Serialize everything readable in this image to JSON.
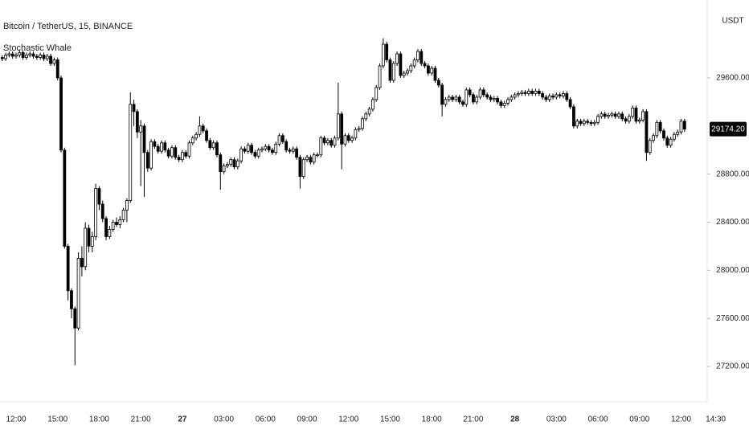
{
  "chart_data": {
    "type": "candlestick",
    "title": "Bitcoin / TetherUS, 15, BINANCE",
    "subtitle": "Stochastic Whale",
    "y_axis_label": "USDT",
    "last_price_label": "29174.20",
    "up_color": "#ffffff",
    "down_color": "#000000",
    "border_color": "#000000",
    "grid": false,
    "ylim": [
      26973,
      30248
    ],
    "yticks": [
      {
        "value": 27200,
        "label": "27200.00"
      },
      {
        "value": 27600,
        "label": "27600.00"
      },
      {
        "value": 28000,
        "label": "28000.00"
      },
      {
        "value": 28400,
        "label": "28400.00"
      },
      {
        "value": 28800,
        "label": "28800.00"
      },
      {
        "value": 29600,
        "label": "29600.00"
      }
    ],
    "categories": [
      null,
      null,
      null,
      null,
      "12:00",
      null,
      null,
      null,
      null,
      null,
      null,
      null,
      null,
      null,
      null,
      null,
      "15:00",
      null,
      null,
      null,
      null,
      null,
      null,
      null,
      null,
      null,
      null,
      null,
      "18:00",
      null,
      null,
      null,
      null,
      null,
      null,
      null,
      null,
      null,
      null,
      null,
      "21:00",
      null,
      null,
      null,
      null,
      null,
      null,
      null,
      null,
      null,
      null,
      null,
      "27",
      null,
      null,
      null,
      null,
      null,
      null,
      null,
      null,
      null,
      null,
      null,
      "03:00",
      null,
      null,
      null,
      null,
      null,
      null,
      null,
      null,
      null,
      null,
      null,
      "06:00",
      null,
      null,
      null,
      null,
      null,
      null,
      null,
      null,
      null,
      null,
      null,
      "09:00",
      null,
      null,
      null,
      null,
      null,
      null,
      null,
      null,
      null,
      null,
      null,
      "12:00",
      null,
      null,
      null,
      null,
      null,
      null,
      null,
      null,
      null,
      null,
      null,
      "15:00",
      null,
      null,
      null,
      null,
      null,
      null,
      null,
      null,
      null,
      null,
      null,
      "18:00",
      null,
      null,
      null,
      null,
      null,
      null,
      null,
      null,
      null,
      null,
      null,
      "21:00",
      null,
      null,
      null,
      null,
      null,
      null,
      null,
      null,
      null,
      null,
      null,
      "28",
      null,
      null,
      null,
      null,
      null,
      null,
      null,
      null,
      null,
      null,
      null,
      "03:00",
      null,
      null,
      null,
      null,
      null,
      null,
      null,
      null,
      null,
      null,
      null,
      "06:00",
      null,
      null,
      null,
      null,
      null,
      null,
      null,
      null,
      null,
      null,
      null,
      "09:00",
      null,
      null,
      null,
      null,
      null,
      null,
      null,
      null,
      null,
      null,
      null,
      "12:00",
      null,
      null,
      null,
      null,
      null,
      null,
      null,
      null,
      null,
      "14:30"
    ],
    "open": [
      29770,
      29760,
      29790,
      29800,
      29780,
      29790,
      29810,
      29770,
      29790,
      29800,
      29780,
      29770,
      29790,
      29760,
      29780,
      29720,
      29750,
      29600,
      29000,
      28200,
      27830,
      27680,
      27520,
      28100,
      28030,
      28350,
      28200,
      28280,
      28680,
      28550,
      28430,
      28280,
      28340,
      28400,
      28380,
      28420,
      28500,
      28580,
      29380,
      29320,
      29150,
      29200,
      28980,
      28850,
      29070,
      29030,
      28990,
      29060,
      29000,
      28950,
      29020,
      28940,
      28920,
      28980,
      28950,
      29060,
      29100,
      29130,
      29200,
      29160,
      29080,
      29020,
      29060,
      28960,
      28820,
      28870,
      28880,
      28920,
      28860,
      28910,
      29010,
      28990,
      29040,
      28980,
      28950,
      29000,
      29010,
      29030,
      29000,
      28980,
      29050,
      29120,
      29070,
      29000,
      28990,
      29010,
      28940,
      28780,
      28920,
      28940,
      28900,
      28960,
      28960,
      29100,
      29060,
      29080,
      29040,
      29100,
      29300,
      29050,
      29120,
      29080,
      29100,
      29170,
      29180,
      29260,
      29300,
      29340,
      29420,
      29520,
      29700,
      29880,
      29750,
      29580,
      29720,
      29800,
      29620,
      29640,
      29660,
      29700,
      29750,
      29820,
      29720,
      29700,
      29640,
      29680,
      29580,
      29540,
      29380,
      29420,
      29440,
      29420,
      29440,
      29400,
      29380,
      29500,
      29460,
      29400,
      29440,
      29500,
      29460,
      29440,
      29420,
      29430,
      29400,
      29370,
      29390,
      29420,
      29440,
      29460,
      29470,
      29480,
      29470,
      29490,
      29470,
      29490,
      29470,
      29440,
      29420,
      29450,
      29440,
      29460,
      29450,
      29470,
      29420,
      29360,
      29200,
      29240,
      29220,
      29240,
      29230,
      29220,
      29230,
      29280,
      29300,
      29280,
      29290,
      29300,
      29280,
      29300,
      29260,
      29240,
      29280,
      29350,
      29240,
      29250,
      29320,
      28980,
      29080,
      29120,
      29230,
      29160,
      29100,
      29040,
      29090,
      29130,
      29150,
      29240,
      null,
      null,
      null,
      null,
      null,
      null,
      null,
      null,
      null
    ],
    "high": [
      29790,
      29810,
      29820,
      29820,
      29810,
      29830,
      29830,
      29810,
      29820,
      29820,
      29800,
      29810,
      29810,
      29800,
      29800,
      29770,
      29770,
      29620,
      29020,
      28220,
      27850,
      27700,
      28150,
      28200,
      28400,
      28380,
      28320,
      28720,
      28700,
      28580,
      28450,
      28370,
      28420,
      28440,
      28450,
      28520,
      28600,
      29480,
      29420,
      29340,
      29250,
      29220,
      29000,
      29090,
      29090,
      29050,
      29080,
      29080,
      29020,
      29040,
      29040,
      28960,
      29000,
      29000,
      29080,
      29120,
      29150,
      29280,
      29220,
      29180,
      29100,
      29080,
      29080,
      28980,
      28890,
      28900,
      28940,
      28940,
      28930,
      29030,
      29030,
      29060,
      29060,
      29000,
      29020,
      29030,
      29050,
      29050,
      29020,
      29070,
      29140,
      29140,
      29090,
      29020,
      29030,
      29030,
      28960,
      28940,
      28960,
      28960,
      28980,
      28980,
      29120,
      29120,
      29100,
      29100,
      29120,
      29560,
      29320,
      29140,
      29140,
      29120,
      29190,
      29200,
      29280,
      29320,
      29360,
      29440,
      29540,
      29720,
      29930,
      29900,
      29770,
      29740,
      29820,
      29820,
      29660,
      29680,
      29720,
      29770,
      29840,
      29840,
      29740,
      29720,
      29700,
      29700,
      29600,
      29560,
      29440,
      29460,
      29460,
      29460,
      29460,
      29420,
      29520,
      29520,
      29480,
      29460,
      29520,
      29520,
      29480,
      29460,
      29450,
      29450,
      29420,
      29410,
      29440,
      29460,
      29480,
      29490,
      29500,
      29500,
      29510,
      29510,
      29510,
      29510,
      29490,
      29460,
      29470,
      29470,
      29480,
      29480,
      29490,
      29490,
      29440,
      29380,
      29260,
      29260,
      29260,
      29260,
      29250,
      29250,
      29300,
      29320,
      29320,
      29310,
      29320,
      29320,
      29320,
      29320,
      29280,
      29300,
      29370,
      29370,
      29270,
      29340,
      29340,
      29100,
      29140,
      29250,
      29250,
      29180,
      29120,
      29110,
      29150,
      29170,
      29260,
      29260,
      null,
      null,
      null,
      null,
      null,
      null,
      null,
      null,
      null
    ],
    "low": [
      29740,
      29740,
      29770,
      29760,
      29760,
      29770,
      29750,
      29750,
      29770,
      29760,
      29750,
      29750,
      29740,
      29740,
      29700,
      29700,
      29580,
      28980,
      28180,
      27750,
      27600,
      27210,
      27500,
      27950,
      28000,
      28150,
      28150,
      28250,
      28500,
      28400,
      28250,
      28260,
      28320,
      28360,
      28350,
      28400,
      28400,
      28560,
      29200,
      29100,
      28700,
      28610,
      28820,
      28830,
      29010,
      28970,
      28970,
      28980,
      28930,
      28930,
      28920,
      28900,
      28900,
      28930,
      28930,
      29040,
      29080,
      29110,
      29140,
      29060,
      29000,
      29000,
      28940,
      28670,
      28800,
      28850,
      28860,
      28840,
      28840,
      28890,
      28970,
      28970,
      28960,
      28930,
      28930,
      28980,
      28990,
      28980,
      28960,
      28960,
      29030,
      29050,
      28980,
      28970,
      28970,
      28920,
      28680,
      28760,
      28900,
      28880,
      28880,
      28940,
      28940,
      29040,
      29040,
      29020,
      29020,
      29080,
      28840,
      29030,
      29060,
      29060,
      29080,
      29150,
      29160,
      29240,
      29280,
      29320,
      29400,
      29500,
      29680,
      29730,
      29560,
      29560,
      29700,
      29600,
      29600,
      29620,
      29640,
      29680,
      29730,
      29700,
      29680,
      29620,
      29620,
      29560,
      29520,
      29280,
      29360,
      29400,
      29400,
      29400,
      29380,
      29360,
      29360,
      29440,
      29380,
      29380,
      29420,
      29440,
      29420,
      29400,
      29400,
      29380,
      29350,
      29350,
      29370,
      29400,
      29420,
      29440,
      29450,
      29450,
      29450,
      29450,
      29450,
      29450,
      29420,
      29400,
      29400,
      29420,
      29420,
      29430,
      29430,
      29400,
      29340,
      29180,
      29180,
      29200,
      29200,
      29210,
      29200,
      29200,
      29210,
      29260,
      29260,
      29260,
      29270,
      29260,
      29260,
      29240,
      29220,
      29220,
      29260,
      29220,
      29220,
      29230,
      28910,
      28960,
      29060,
      29100,
      29140,
      29080,
      29020,
      29020,
      29070,
      29110,
      29130,
      29150,
      null,
      null,
      null,
      null,
      null,
      null,
      null,
      null,
      null
    ],
    "close": [
      29760,
      29790,
      29800,
      29780,
      29790,
      29810,
      29770,
      29790,
      29800,
      29780,
      29770,
      29790,
      29760,
      29780,
      29720,
      29750,
      29600,
      29000,
      28200,
      27830,
      27680,
      27520,
      28100,
      28030,
      28350,
      28200,
      28280,
      28680,
      28550,
      28430,
      28280,
      28340,
      28400,
      28380,
      28420,
      28500,
      28580,
      29380,
      29320,
      29150,
      29200,
      28980,
      28850,
      29070,
      29030,
      28990,
      29060,
      29000,
      28950,
      29020,
      28940,
      28920,
      28980,
      28950,
      29060,
      29100,
      29130,
      29200,
      29160,
      29080,
      29020,
      29060,
      28960,
      28820,
      28870,
      28880,
      28920,
      28860,
      28910,
      29010,
      28990,
      29040,
      28980,
      28950,
      29000,
      29010,
      29030,
      29000,
      28980,
      29050,
      29120,
      29070,
      29000,
      28990,
      29010,
      28940,
      28780,
      28920,
      28940,
      28900,
      28960,
      28960,
      29100,
      29060,
      29080,
      29040,
      29100,
      29300,
      29050,
      29120,
      29080,
      29100,
      29170,
      29180,
      29260,
      29300,
      29340,
      29420,
      29520,
      29700,
      29880,
      29750,
      29580,
      29720,
      29800,
      29620,
      29640,
      29660,
      29700,
      29750,
      29820,
      29720,
      29700,
      29640,
      29680,
      29580,
      29540,
      29380,
      29420,
      29440,
      29420,
      29440,
      29400,
      29380,
      29500,
      29460,
      29400,
      29440,
      29500,
      29460,
      29440,
      29420,
      29430,
      29400,
      29370,
      29390,
      29420,
      29440,
      29460,
      29470,
      29480,
      29470,
      29490,
      29470,
      29490,
      29470,
      29440,
      29420,
      29450,
      29440,
      29460,
      29450,
      29470,
      29420,
      29360,
      29200,
      29240,
      29220,
      29240,
      29230,
      29220,
      29230,
      29280,
      29300,
      29280,
      29290,
      29300,
      29280,
      29300,
      29260,
      29240,
      29280,
      29350,
      29240,
      29250,
      29320,
      28980,
      29080,
      29120,
      29230,
      29160,
      29100,
      29040,
      29090,
      29130,
      29150,
      29240,
      29174.2,
      null,
      null,
      null,
      null,
      null,
      null,
      null,
      null,
      null
    ]
  }
}
